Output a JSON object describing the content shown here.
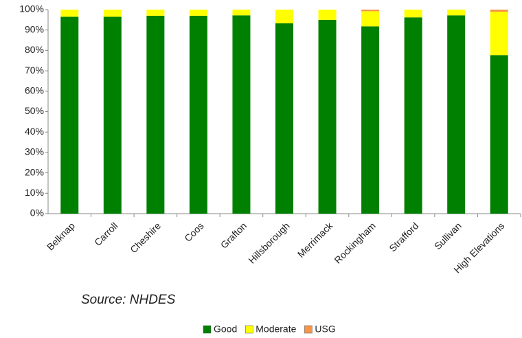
{
  "chart_data": {
    "type": "stacked_bar",
    "categories": [
      "Belknap",
      "Carroll",
      "Cheshire",
      "Coos",
      "Grafton",
      "Hillsborough",
      "Merrimack",
      "Rockingham",
      "Strafford",
      "Sullivan",
      "High Elevations"
    ],
    "series": [
      {
        "name": "Good",
        "color": "#008000",
        "values": [
          96.5,
          96.5,
          97,
          97,
          97.2,
          93.3,
          95,
          91.8,
          96.2,
          97.2,
          77.7
        ]
      },
      {
        "name": "Moderate",
        "color": "#ffff00",
        "values": [
          3.5,
          3.5,
          3,
          3,
          2.8,
          6.7,
          5,
          7.4,
          3.8,
          2.8,
          21.3
        ]
      },
      {
        "name": "USG",
        "color": "#f79646",
        "values": [
          0,
          0,
          0,
          0,
          0,
          0,
          0,
          0.8,
          0,
          0,
          1.0
        ]
      }
    ],
    "ylim": [
      0,
      100
    ],
    "yticks": [
      {
        "value": 0,
        "label": "0%"
      },
      {
        "value": 10,
        "label": "10%"
      },
      {
        "value": 20,
        "label": "20%"
      },
      {
        "value": 30,
        "label": "30%"
      },
      {
        "value": 40,
        "label": "40%"
      },
      {
        "value": 50,
        "label": "50%"
      },
      {
        "value": 60,
        "label": "60%"
      },
      {
        "value": 70,
        "label": "70%"
      },
      {
        "value": 80,
        "label": "80%"
      },
      {
        "value": 90,
        "label": "90%"
      },
      {
        "value": 100,
        "label": "100%"
      }
    ],
    "annotation": "Source:  NHDES",
    "legend": "bottom"
  }
}
